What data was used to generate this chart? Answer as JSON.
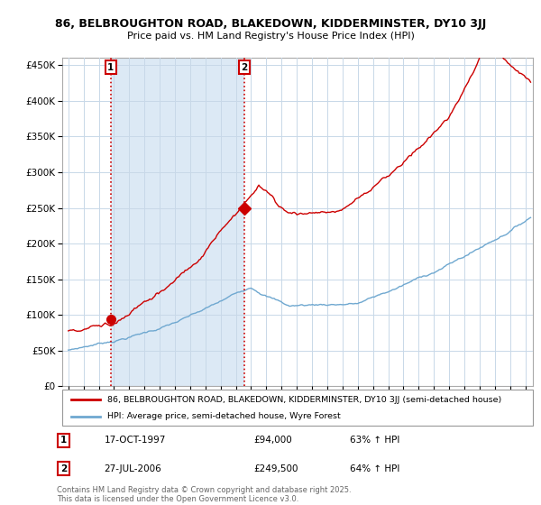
{
  "title_line1": "86, BELBROUGHTON ROAD, BLAKEDOWN, KIDDERMINSTER, DY10 3JJ",
  "title_line2": "Price paid vs. HM Land Registry's House Price Index (HPI)",
  "background_color": "#ffffff",
  "plot_bg_color": "#ffffff",
  "shade_color": "#dce9f5",
  "grid_color": "#c8d8e8",
  "red_line_color": "#cc0000",
  "blue_line_color": "#6fa8d0",
  "vline_color": "#cc0000",
  "dot_color": "#cc0000",
  "legend_entry1": "86, BELBROUGHTON ROAD, BLAKEDOWN, KIDDERMINSTER, DY10 3JJ (semi-detached house)",
  "legend_entry2": "HPI: Average price, semi-detached house, Wyre Forest",
  "annotation_text": "Contains HM Land Registry data © Crown copyright and database right 2025.\nThis data is licensed under the Open Government Licence v3.0.",
  "purchase1_date_str": "17-OCT-1997",
  "purchase1_price": 94000,
  "purchase1_pct": "63% ↑ HPI",
  "purchase1_x": 1997.79,
  "purchase1_y": 94000,
  "purchase2_date_str": "27-JUL-2006",
  "purchase2_price": 249500,
  "purchase2_pct": "64% ↑ HPI",
  "purchase2_x": 2006.55,
  "purchase2_y": 249500,
  "ylim": [
    0,
    460000
  ],
  "xlim_start": 1994.6,
  "xlim_end": 2025.5,
  "yticks": [
    0,
    50000,
    100000,
    150000,
    200000,
    250000,
    300000,
    350000,
    400000,
    450000
  ]
}
